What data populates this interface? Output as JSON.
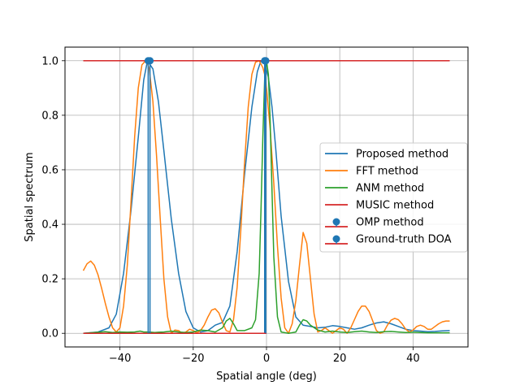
{
  "chart_data": {
    "type": "line",
    "title": "",
    "xlabel": "Spatial angle (deg)",
    "ylabel": "Spatial spectrum",
    "xlim": [
      -55,
      55
    ],
    "ylim": [
      -0.05,
      1.05
    ],
    "xticks": [
      -40,
      -20,
      0,
      20,
      40
    ],
    "yticks": [
      0.0,
      0.2,
      0.4,
      0.6,
      0.8,
      1.0
    ],
    "xtick_labels": [
      "−40",
      "−20",
      "0",
      "20",
      "40"
    ],
    "ytick_labels": [
      "0.0",
      "0.2",
      "0.4",
      "0.6",
      "0.8",
      "1.0"
    ],
    "grid": true,
    "legend_position": "center-right",
    "series": [
      {
        "name": "Proposed method",
        "color": "#1f77b4",
        "x": [
          -50,
          -46,
          -43,
          -41,
          -39,
          -37,
          -35,
          -33.5,
          -32.5,
          -31,
          -29.5,
          -28,
          -26,
          -24,
          -22,
          -20,
          -18,
          -16,
          -14,
          -12,
          -10,
          -8,
          -6,
          -4,
          -2.5,
          -1.5,
          -0.5,
          0.5,
          1.5,
          2.5,
          4,
          6,
          8,
          10,
          12,
          14,
          16,
          18,
          20,
          22,
          24,
          26,
          28,
          30,
          32,
          34,
          36,
          38,
          40,
          42,
          44,
          46,
          48,
          50
        ],
        "y": [
          0.0,
          0.005,
          0.02,
          0.07,
          0.22,
          0.45,
          0.72,
          0.93,
          1.0,
          0.97,
          0.85,
          0.67,
          0.42,
          0.22,
          0.08,
          0.02,
          0.005,
          0.01,
          0.03,
          0.04,
          0.1,
          0.3,
          0.58,
          0.83,
          0.96,
          1.0,
          0.99,
          0.94,
          0.83,
          0.68,
          0.43,
          0.19,
          0.06,
          0.03,
          0.025,
          0.02,
          0.022,
          0.028,
          0.025,
          0.02,
          0.015,
          0.02,
          0.03,
          0.038,
          0.042,
          0.035,
          0.025,
          0.015,
          0.01,
          0.008,
          0.006,
          0.007,
          0.009,
          0.01
        ]
      },
      {
        "name": "FFT method",
        "color": "#ff7f0e",
        "x": [
          -50,
          -49,
          -48,
          -47,
          -46,
          -45,
          -44,
          -43,
          -42,
          -41,
          -40,
          -39,
          -38,
          -37,
          -36,
          -35,
          -34,
          -33,
          -32.5,
          -32,
          -31,
          -30,
          -29,
          -28,
          -27,
          -26,
          -25,
          -24,
          -23,
          -22,
          -21,
          -20,
          -19,
          -18,
          -17,
          -16,
          -15,
          -14,
          -13,
          -12,
          -11,
          -10,
          -9,
          -8,
          -7,
          -6,
          -5,
          -4,
          -3,
          -2,
          -1,
          -0.5,
          0,
          1,
          2,
          3,
          4,
          5,
          6,
          7,
          8,
          9,
          10,
          11,
          12,
          13,
          14,
          15,
          16,
          17,
          18,
          19,
          20,
          21,
          22,
          23,
          24,
          25,
          26,
          27,
          28,
          29,
          30,
          31,
          32,
          33,
          34,
          35,
          36,
          37,
          38,
          39,
          40,
          41,
          42,
          43,
          44,
          45,
          46,
          47,
          48,
          49,
          50
        ],
        "y": [
          0.23,
          0.255,
          0.265,
          0.25,
          0.215,
          0.165,
          0.11,
          0.06,
          0.02,
          0.005,
          0.02,
          0.1,
          0.25,
          0.48,
          0.72,
          0.9,
          0.985,
          1.0,
          0.99,
          0.97,
          0.85,
          0.65,
          0.42,
          0.2,
          0.06,
          0.0,
          0.012,
          0.01,
          0.0,
          0.005,
          0.015,
          0.01,
          0.002,
          0.01,
          0.03,
          0.06,
          0.085,
          0.09,
          0.075,
          0.04,
          0.01,
          0.005,
          0.05,
          0.17,
          0.38,
          0.62,
          0.83,
          0.95,
          0.995,
          1.0,
          0.975,
          0.95,
          0.9,
          0.75,
          0.55,
          0.32,
          0.13,
          0.02,
          0.0,
          0.035,
          0.12,
          0.25,
          0.37,
          0.33,
          0.2,
          0.07,
          0.005,
          0.01,
          0.02,
          0.01,
          0.0,
          0.01,
          0.02,
          0.015,
          0.0,
          0.02,
          0.05,
          0.08,
          0.1,
          0.1,
          0.08,
          0.045,
          0.01,
          0.0,
          0.005,
          0.03,
          0.048,
          0.055,
          0.05,
          0.035,
          0.015,
          0.005,
          0.012,
          0.025,
          0.03,
          0.025,
          0.015,
          0.015,
          0.025,
          0.035,
          0.042,
          0.045,
          0.045
        ]
      },
      {
        "name": "ANM method",
        "color": "#2ca02c",
        "x": [
          -50,
          -46,
          -44,
          -42,
          -40,
          -38,
          -36,
          -34.5,
          -33.5,
          -32.5,
          -31.5,
          -30.5,
          -29.5,
          -28,
          -26,
          -24,
          -22,
          -20,
          -18,
          -16,
          -14,
          -12,
          -11,
          -10,
          -9,
          -8,
          -6,
          -4,
          -3,
          -2,
          -1.5,
          -1,
          -0.5,
          0,
          0.5,
          1,
          1.5,
          2,
          3,
          4,
          6,
          8,
          9,
          10,
          11,
          12,
          14,
          16,
          18,
          20,
          22,
          24,
          26,
          28,
          30,
          32,
          34,
          36,
          38,
          40,
          42,
          44,
          46,
          48,
          50
        ],
        "y": [
          0.0,
          0.004,
          0.006,
          0.003,
          0.005,
          0.004,
          0.005,
          0.008,
          0.005,
          0.005,
          0.004,
          0.003,
          0.004,
          0.005,
          0.008,
          0.005,
          0.003,
          0.005,
          0.012,
          0.01,
          0.005,
          0.02,
          0.045,
          0.055,
          0.035,
          0.01,
          0.01,
          0.02,
          0.05,
          0.22,
          0.45,
          0.72,
          0.93,
          1.0,
          0.95,
          0.78,
          0.52,
          0.28,
          0.06,
          0.005,
          0.0,
          0.005,
          0.03,
          0.05,
          0.045,
          0.03,
          0.012,
          0.005,
          0.008,
          0.005,
          0.003,
          0.006,
          0.008,
          0.005,
          0.003,
          0.006,
          0.007,
          0.005,
          0.003,
          0.004,
          0.003,
          0.002,
          0.002,
          0.002,
          0.002
        ]
      },
      {
        "name": "MUSIC method",
        "color": "#d62728",
        "x": [
          -50,
          50
        ],
        "y": [
          1.0,
          1.0
        ]
      }
    ],
    "stems": [
      {
        "name": "OMP method",
        "color": "#d62728",
        "marker_color": "#1f77b4",
        "x": [
          -32.3,
          -0.5
        ],
        "y": [
          1.0,
          1.0
        ],
        "baseline": [
          -50,
          0
        ]
      },
      {
        "name": "Ground-truth DOA",
        "color": "#d62728",
        "marker_color": "#1f77b4",
        "x": [
          -31.8,
          -0.2
        ],
        "y": [
          1.0,
          1.0
        ],
        "baseline": [
          -32,
          0
        ]
      }
    ]
  }
}
